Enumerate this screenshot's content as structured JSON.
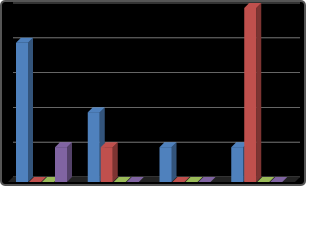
{
  "chart_data": {
    "type": "bar3d",
    "categories": [
      null,
      null,
      null,
      null
    ],
    "series": [
      {
        "color": "#4f81bd",
        "values": [
          4,
          2,
          1,
          1
        ]
      },
      {
        "color": "#c0504d",
        "values": [
          0,
          1,
          0,
          5
        ]
      },
      {
        "color": "#9bbb59",
        "values": [
          0,
          0,
          0,
          0
        ]
      },
      {
        "color": "#8064a2",
        "values": [
          1,
          0,
          0,
          0
        ]
      }
    ],
    "ylim": [
      0,
      5
    ],
    "yticks": [
      0,
      1,
      2,
      3,
      4,
      5
    ],
    "grid": true,
    "background": "#000000"
  }
}
